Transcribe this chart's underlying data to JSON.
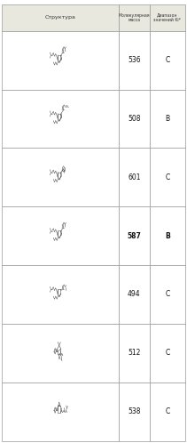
{
  "title_col1": "Структура",
  "title_col2": "Молекулярная\nмасса",
  "title_col3": "Диапазон\nзначений Ki*",
  "rows": [
    {
      "mass": "536",
      "ki": "C",
      "bold": false
    },
    {
      "mass": "508",
      "ki": "B",
      "bold": false
    },
    {
      "mass": "601",
      "ki": "C",
      "bold": false
    },
    {
      "mass": "587",
      "ki": "B",
      "bold": true
    },
    {
      "mass": "494",
      "ki": "C",
      "bold": false
    },
    {
      "mass": "512",
      "ki": "C",
      "bold": false
    },
    {
      "mass": "538",
      "ki": "C",
      "bold": false
    }
  ],
  "border_color": "#999999",
  "header_bg": "#e8e8e0",
  "row_bg": "#ffffff",
  "text_color": "#222222",
  "fig_width": 2.11,
  "fig_height": 4.98,
  "dpi": 100
}
